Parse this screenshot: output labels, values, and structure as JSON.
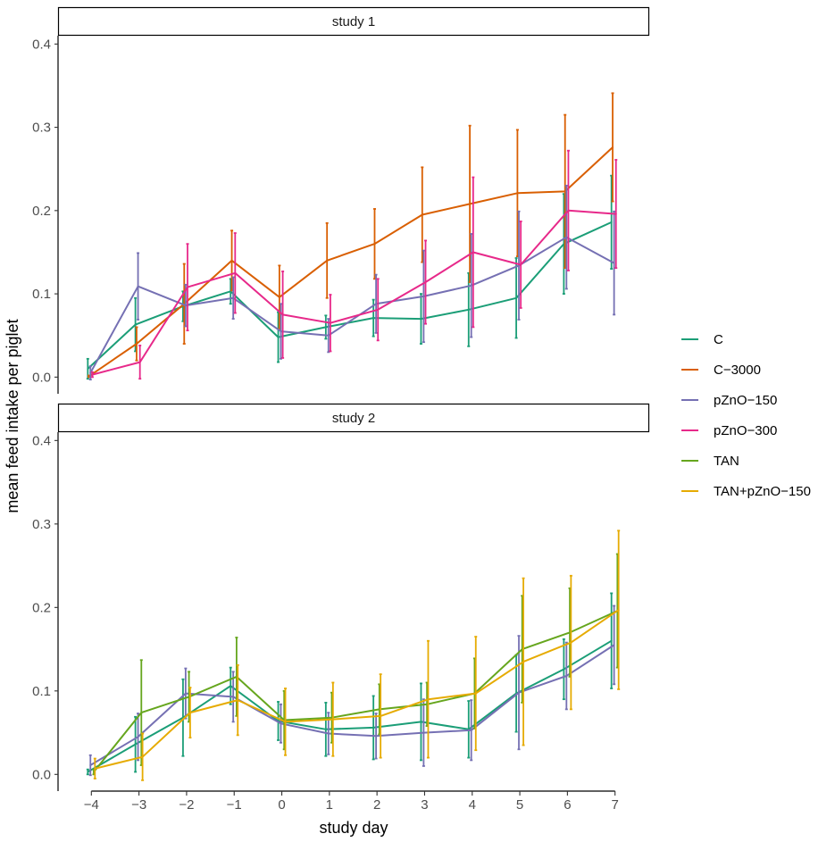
{
  "chart_data": {
    "type": "line",
    "xlabel": "study day",
    "ylabel": "mean feed intake per piglet",
    "x": [
      -4,
      -3,
      -2,
      -1,
      0,
      1,
      2,
      3,
      4,
      5,
      6,
      7
    ],
    "x_tick_labels": [
      "−4",
      "−3",
      "−2",
      "−1",
      "0",
      "1",
      "2",
      "3",
      "4",
      "5",
      "6",
      "7"
    ],
    "ylim": [
      -0.02,
      0.41
    ],
    "y_ticks": [
      0.0,
      0.1,
      0.2,
      0.3,
      0.4
    ],
    "y_tick_labels": [
      "0.0",
      "0.1",
      "0.2",
      "0.3",
      "0.4"
    ],
    "legend": [
      {
        "name": "C",
        "color": "#1b9e77"
      },
      {
        "name": "C−3000",
        "color": "#d95f02"
      },
      {
        "name": "pZnO−150",
        "color": "#7570b3"
      },
      {
        "name": "pZnO−300",
        "color": "#e7298a"
      },
      {
        "name": "TAN",
        "color": "#66a61e"
      },
      {
        "name": "TAN+pZnO−150",
        "color": "#e6ab02"
      }
    ],
    "panels": [
      {
        "title": "study 1",
        "series": [
          {
            "name": "C",
            "color": "#1b9e77",
            "values": [
              0.01,
              0.063,
              0.085,
              0.103,
              0.048,
              0.06,
              0.071,
              0.07,
              0.081,
              0.095,
              0.16,
              0.186
            ],
            "errors": [
              0.012,
              0.032,
              0.018,
              0.015,
              0.03,
              0.014,
              0.022,
              0.03,
              0.044,
              0.048,
              0.06,
              0.056
            ]
          },
          {
            "name": "C−3000",
            "color": "#d95f02",
            "values": [
              0.001,
              0.04,
              0.088,
              0.14,
              0.096,
              0.14,
              0.16,
              0.195,
              0.208,
              0.221,
              0.223,
              0.276
            ],
            "errors": [
              0.001,
              0.02,
              0.048,
              0.036,
              0.038,
              0.045,
              0.042,
              0.057,
              0.094,
              0.076,
              0.092,
              0.065
            ]
          },
          {
            "name": "pZnO−150",
            "color": "#7570b3",
            "values": [
              0.005,
              0.109,
              0.086,
              0.095,
              0.055,
              0.05,
              0.088,
              0.097,
              0.11,
              0.134,
              0.168,
              0.137
            ],
            "errors": [
              0.008,
              0.04,
              0.025,
              0.025,
              0.033,
              0.02,
              0.035,
              0.055,
              0.062,
              0.065,
              0.062,
              0.062
            ]
          },
          {
            "name": "pZnO−300",
            "color": "#e7298a",
            "values": [
              0.003,
              0.018,
              0.108,
              0.125,
              0.075,
              0.065,
              0.081,
              0.114,
              0.15,
              0.135,
              0.2,
              0.196
            ],
            "errors": [
              0.003,
              0.02,
              0.052,
              0.048,
              0.052,
              0.034,
              0.037,
              0.05,
              0.09,
              0.052,
              0.072,
              0.065
            ]
          }
        ]
      },
      {
        "title": "study 2",
        "series": [
          {
            "name": "C",
            "color": "#1b9e77",
            "values": [
              0.003,
              0.036,
              0.068,
              0.106,
              0.064,
              0.054,
              0.056,
              0.063,
              0.054,
              0.097,
              0.126,
              0.16
            ],
            "errors": [
              0.003,
              0.033,
              0.046,
              0.022,
              0.023,
              0.032,
              0.038,
              0.046,
              0.034,
              0.046,
              0.036,
              0.057
            ]
          },
          {
            "name": "C−3000",
            "color": "#d95f02",
            "values": [],
            "errors": []
          },
          {
            "name": "pZnO−150",
            "color": "#7570b3",
            "values": [
              0.011,
              0.045,
              0.097,
              0.093,
              0.061,
              0.049,
              0.046,
              0.05,
              0.053,
              0.098,
              0.118,
              0.155
            ],
            "errors": [
              0.012,
              0.028,
              0.03,
              0.03,
              0.023,
              0.025,
              0.027,
              0.04,
              0.036,
              0.068,
              0.04,
              0.047
            ]
          },
          {
            "name": "pZnO−300",
            "color": "#e7298a",
            "values": [],
            "errors": []
          },
          {
            "name": "TAN",
            "color": "#66a61e",
            "values": [
              0.003,
              0.074,
              0.093,
              0.117,
              0.065,
              0.068,
              0.078,
              0.084,
              0.097,
              0.15,
              0.17,
              0.196
            ],
            "errors": [
              0.003,
              0.063,
              0.03,
              0.047,
              0.035,
              0.03,
              0.03,
              0.026,
              0.042,
              0.064,
              0.053,
              0.068
            ]
          },
          {
            "name": "TAN+pZnO−150",
            "color": "#e6ab02",
            "values": [
              0.007,
              0.021,
              0.074,
              0.089,
              0.063,
              0.066,
              0.07,
              0.09,
              0.097,
              0.135,
              0.158,
              0.197
            ],
            "errors": [
              0.012,
              0.028,
              0.03,
              0.042,
              0.04,
              0.044,
              0.05,
              0.07,
              0.068,
              0.1,
              0.08,
              0.095
            ]
          }
        ]
      }
    ]
  }
}
